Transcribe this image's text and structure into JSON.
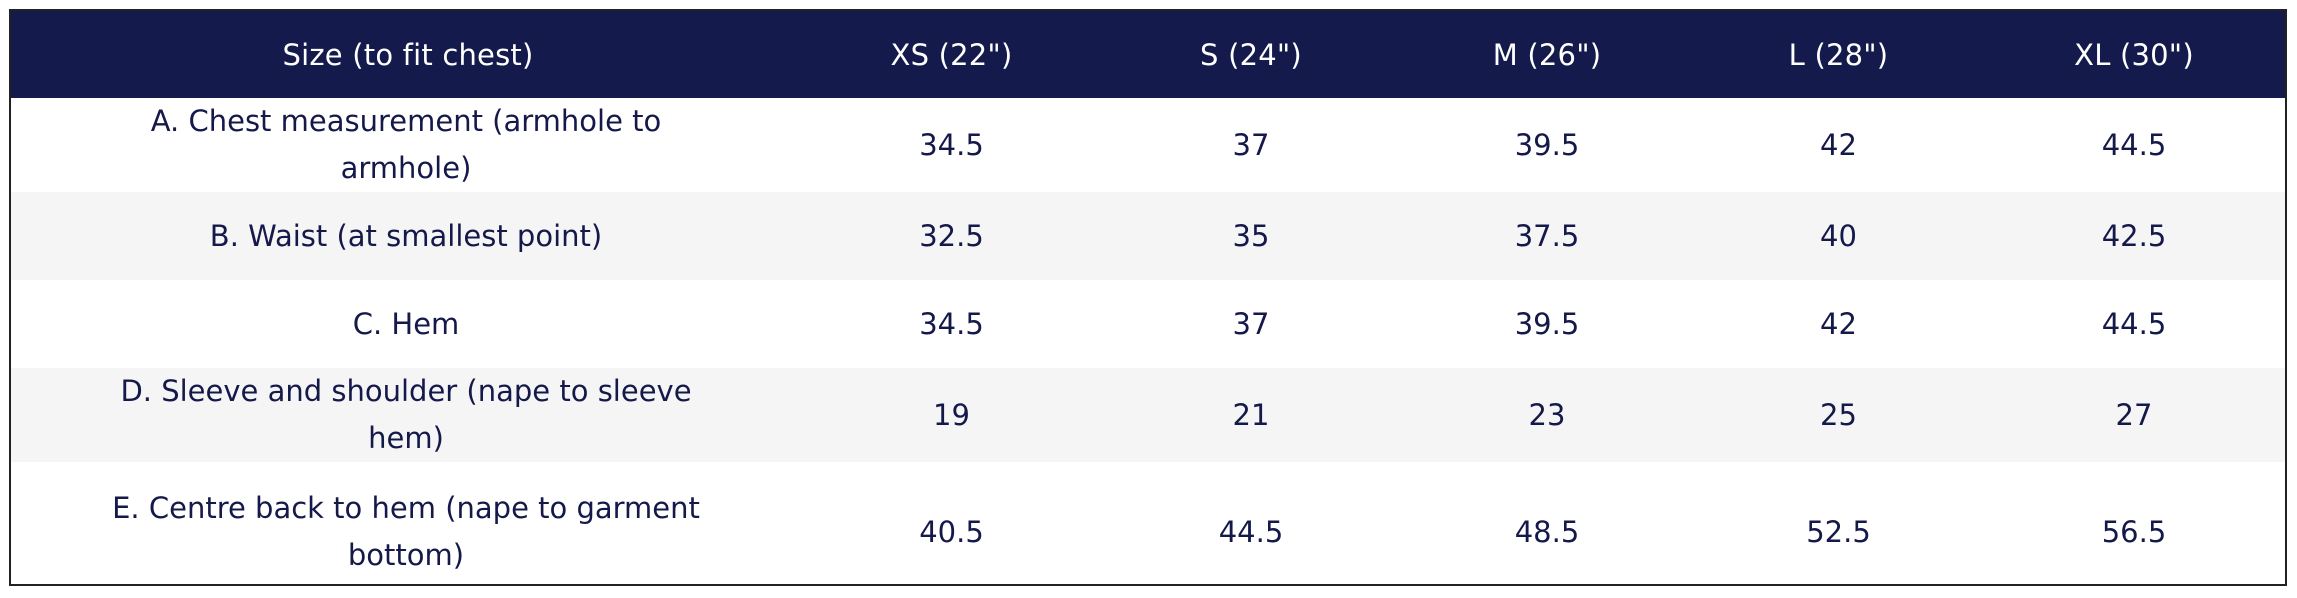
{
  "table": {
    "headers": [
      "Size (to fit chest)",
      "XS (22\")",
      "S (24\")",
      "M (26\")",
      "L (28\")",
      "XL (30\")"
    ],
    "rows": [
      {
        "label": "A. Chest measurement (armhole to armhole)",
        "values": [
          "34.5",
          "37",
          "39.5",
          "42",
          "44.5"
        ]
      },
      {
        "label": "B. Waist (at smallest point)",
        "values": [
          "32.5",
          "35",
          "37.5",
          "40",
          "42.5"
        ]
      },
      {
        "label": "C. Hem",
        "values": [
          "34.5",
          "37",
          "39.5",
          "42",
          "44.5"
        ]
      },
      {
        "label": "D. Sleeve and shoulder (nape to sleeve hem)",
        "values": [
          "19",
          "21",
          "23",
          "25",
          "27"
        ]
      },
      {
        "label": "E. Centre back to hem (nape to garment bottom)",
        "values": [
          "40.5",
          "44.5",
          "48.5",
          "52.5",
          "56.5"
        ]
      }
    ]
  },
  "colors": {
    "header_bg": "#141a4b",
    "header_text": "#ffffff",
    "body_text": "#14194a",
    "row_alt_bg": "#f5f5f5"
  }
}
